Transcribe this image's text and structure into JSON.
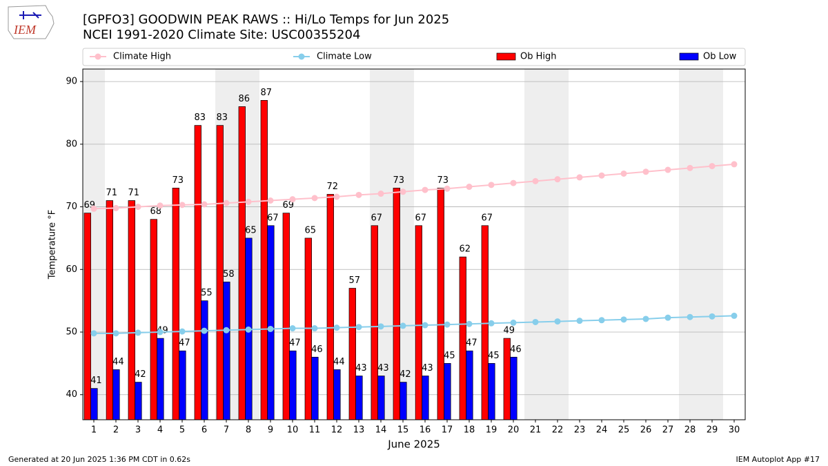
{
  "chart_data": {
    "type": "bar",
    "logo_text": "IEM",
    "title": "[GPFO3] GOODWIN PEAK RAWS :: Hi/Lo Temps for Jun 2025",
    "subtitle": "NCEI 1991-2020 Climate Site: USC00355204",
    "x_label": "June 2025",
    "y_label": "Temperature °F",
    "x": [
      1,
      2,
      3,
      4,
      5,
      6,
      7,
      8,
      9,
      10,
      11,
      12,
      13,
      14,
      15,
      16,
      17,
      18,
      19,
      20,
      21,
      22,
      23,
      24,
      25,
      26,
      27,
      28,
      29,
      30
    ],
    "xlim": [
      0.5,
      30.5
    ],
    "ylim": [
      36,
      92
    ],
    "yticks": [
      40,
      50,
      60,
      70,
      80,
      90
    ],
    "grid": true,
    "shaded_days": [
      1,
      7,
      8,
      14,
      15,
      21,
      22,
      28,
      29
    ],
    "shade_color": "#eeeeee",
    "series": [
      {
        "name": "Climate High",
        "type": "line",
        "color": "#ffc0cb",
        "values": [
          69.7,
          69.8,
          70.0,
          70.2,
          70.3,
          70.4,
          70.6,
          70.8,
          71.0,
          71.2,
          71.4,
          71.6,
          71.9,
          72.1,
          72.4,
          72.7,
          72.9,
          73.2,
          73.5,
          73.8,
          74.1,
          74.4,
          74.7,
          75.0,
          75.3,
          75.6,
          75.9,
          76.2,
          76.5,
          76.8
        ]
      },
      {
        "name": "Climate Low",
        "type": "line",
        "color": "#87ceeb",
        "values": [
          49.8,
          49.8,
          49.9,
          50.0,
          50.1,
          50.2,
          50.3,
          50.4,
          50.5,
          50.6,
          50.6,
          50.7,
          50.8,
          50.9,
          51.0,
          51.1,
          51.2,
          51.3,
          51.4,
          51.5,
          51.6,
          51.7,
          51.8,
          51.9,
          52.0,
          52.1,
          52.3,
          52.4,
          52.5,
          52.6
        ]
      },
      {
        "name": "Ob High",
        "type": "bar",
        "color": "#ff0000",
        "values": [
          69,
          71,
          71,
          68,
          73,
          83,
          83,
          86,
          87,
          69,
          65,
          72,
          57,
          67,
          73,
          67,
          73,
          62,
          67,
          49,
          null,
          null,
          null,
          null,
          null,
          null,
          null,
          null,
          null,
          null
        ]
      },
      {
        "name": "Ob Low",
        "type": "bar",
        "color": "#0000ff",
        "values": [
          41,
          44,
          42,
          49,
          47,
          55,
          58,
          65,
          67,
          47,
          46,
          44,
          43,
          43,
          42,
          43,
          45,
          47,
          45,
          46,
          null,
          null,
          null,
          null,
          null,
          null,
          null,
          null,
          null,
          null
        ]
      }
    ],
    "footer_left": "Generated at 20 Jun 2025 1:36 PM CDT in 0.62s",
    "footer_right": "IEM Autoplot App #17"
  }
}
